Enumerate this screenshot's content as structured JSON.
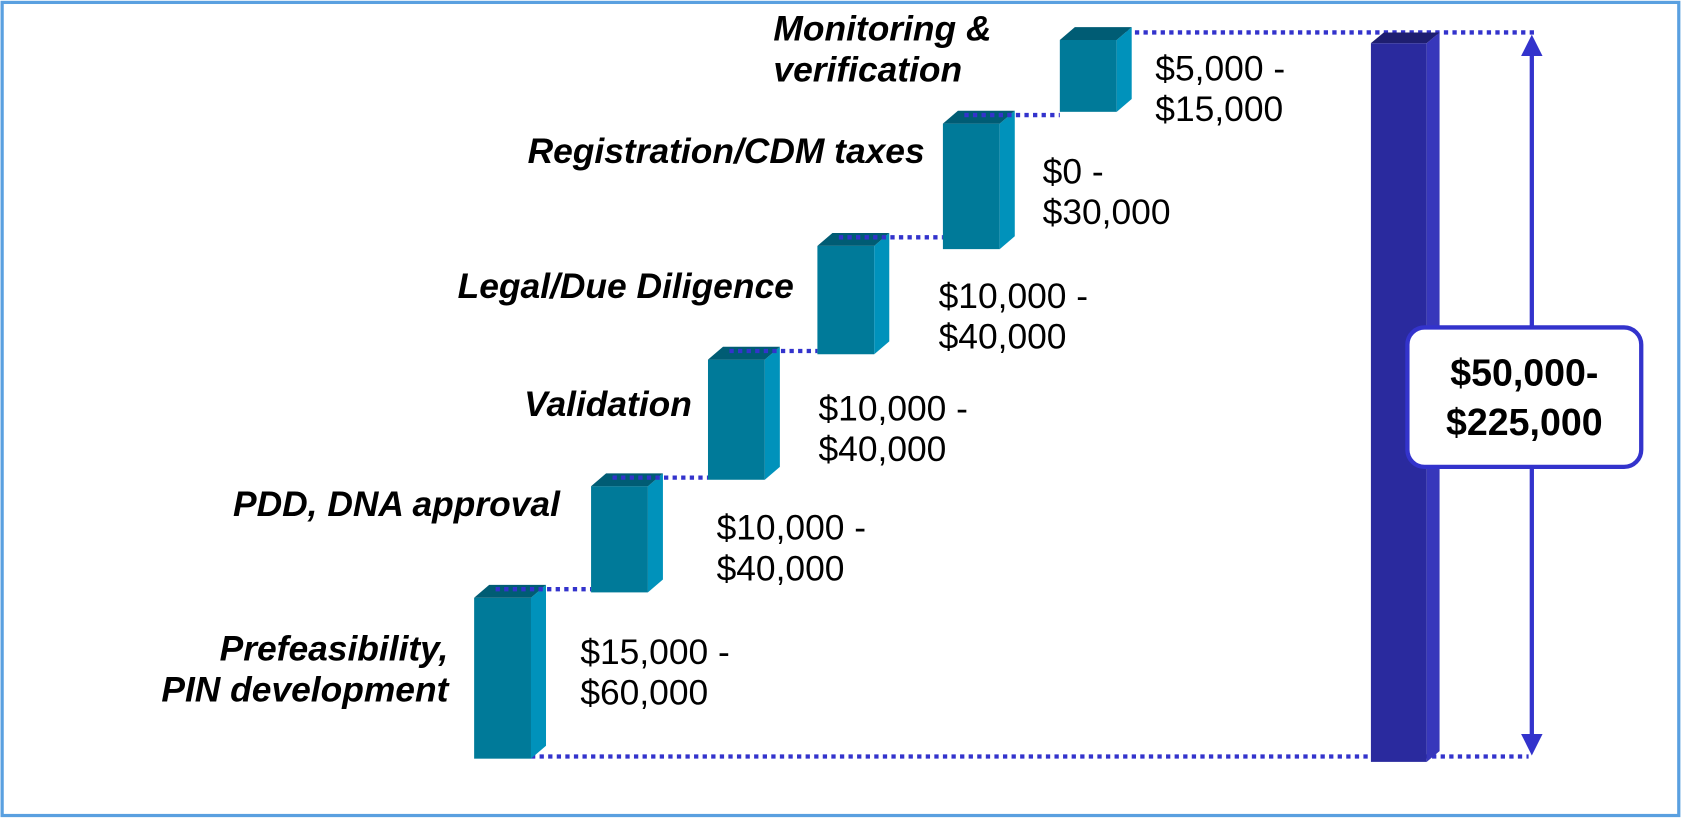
{
  "steps": [
    {
      "label": [
        "Prefeasibility,",
        "PIN development"
      ],
      "cost": [
        "$15,000 -",
        "$60,000"
      ]
    },
    {
      "label": [
        "PDD, DNA approval"
      ],
      "cost": [
        "$10,000 -",
        "$40,000"
      ]
    },
    {
      "label": [
        "Validation"
      ],
      "cost": [
        "$10,000 -",
        "$40,000"
      ]
    },
    {
      "label": [
        "Legal/Due Diligence"
      ],
      "cost": [
        "$10,000 -",
        "$40,000"
      ]
    },
    {
      "label": [
        "Registration/CDM taxes"
      ],
      "cost": [
        "$0 -",
        "$30,000"
      ]
    },
    {
      "label": [
        "Monitoring &",
        "verification"
      ],
      "cost": [
        "$5,000 -",
        "$15,000"
      ]
    }
  ],
  "total": [
    "$50,000-",
    "$225,000"
  ]
}
